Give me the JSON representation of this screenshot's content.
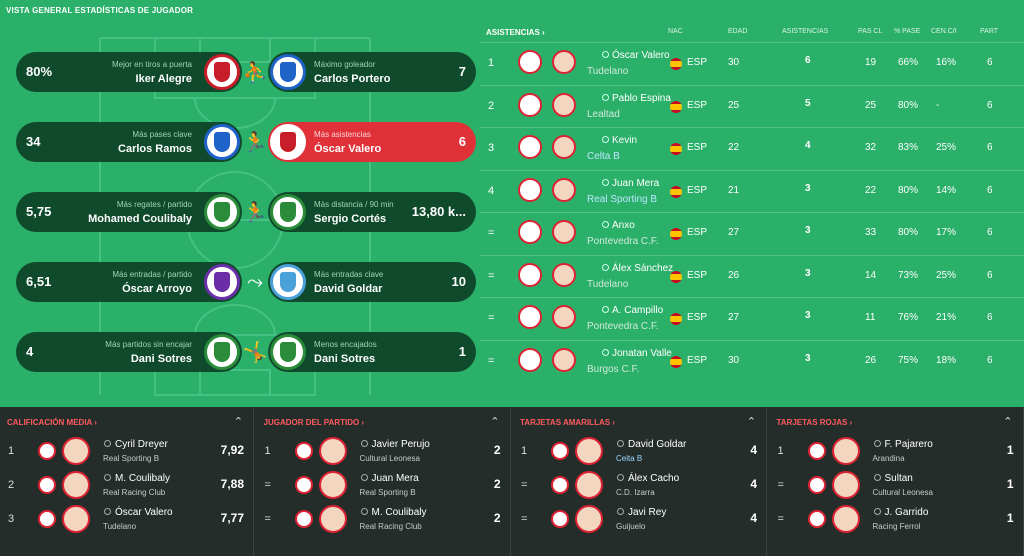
{
  "page_title": "VISTA GENERAL ESTADÍSTICAS DE JUGADOR",
  "colors": {
    "pitch": "#2bb06a",
    "pill": "#0f4a2d",
    "highlight": "#e03038",
    "panel_bg": "#252d2a",
    "accent_red": "#ff5a5f"
  },
  "highlights": [
    {
      "left": {
        "value": "80%",
        "caption": "Mejor en tiros a puerta",
        "player": "Iker Alegre"
      },
      "icon": "shooting-player-icon",
      "right": {
        "value": "7",
        "caption": "Máximo goleador",
        "player": "Carlos Portero"
      }
    },
    {
      "left": {
        "value": "34",
        "caption": "Más pases clave",
        "player": "Carlos Ramos"
      },
      "icon": "passing-player-icon",
      "right": {
        "value": "6",
        "caption": "Más asistencias",
        "player": "Óscar Valero"
      }
    },
    {
      "left": {
        "value": "5,75",
        "caption": "Más regates / partido",
        "player": "Mohamed Coulibaly"
      },
      "icon": "running-player-icon",
      "right": {
        "value": "13,80 k...",
        "caption": "Más distancia / 90 min",
        "player": "Sergio Cortés"
      }
    },
    {
      "left": {
        "value": "6,51",
        "caption": "Más entradas / partido",
        "player": "Óscar Arroyo"
      },
      "icon": "tackling-player-icon",
      "right": {
        "value": "10",
        "caption": "Más entradas clave",
        "player": "David Goldar"
      }
    },
    {
      "left": {
        "value": "4",
        "caption": "Más partidos sin encajar",
        "player": "Dani Sotres"
      },
      "icon": "diving-keeper-icon",
      "right": {
        "value": "1",
        "caption": "Menos encajados",
        "player": "Dani Sotres"
      }
    }
  ],
  "assists_table": {
    "title": "ASISTENCIAS",
    "chevron": "›",
    "headers": {
      "nat": "NAC",
      "age": "EDAD",
      "assists": "ASISTENCIAS",
      "pc": "PAS CL",
      "pass_pct": "% PASE",
      "cc": "CEN.C/I",
      "apps": "PART"
    },
    "rows": [
      {
        "rank": "1",
        "name": "Óscar Valero",
        "team": "Tudelano",
        "nat": "ESP",
        "age": "30",
        "assists": "6",
        "pc": "19",
        "pass_pct": "66%",
        "cc": "16%",
        "apps": "6"
      },
      {
        "rank": "2",
        "name": "Pablo Espina",
        "team": "Lealtad",
        "nat": "ESP",
        "age": "25",
        "assists": "5",
        "pc": "25",
        "pass_pct": "80%",
        "cc": "-",
        "apps": "6"
      },
      {
        "rank": "3",
        "name": "Kevin",
        "team": "Celta B",
        "nat": "ESP",
        "age": "22",
        "assists": "4",
        "pc": "32",
        "pass_pct": "83%",
        "cc": "25%",
        "apps": "6"
      },
      {
        "rank": "4",
        "name": "Juan Mera",
        "team": "Real Sporting B",
        "nat": "ESP",
        "age": "21",
        "assists": "3",
        "pc": "22",
        "pass_pct": "80%",
        "cc": "14%",
        "apps": "6"
      },
      {
        "rank": "=",
        "name": "Anxo",
        "team": "Pontevedra C.F.",
        "nat": "ESP",
        "age": "27",
        "assists": "3",
        "pc": "33",
        "pass_pct": "80%",
        "cc": "17%",
        "apps": "6"
      },
      {
        "rank": "=",
        "name": "Álex Sánchez",
        "team": "Tudelano",
        "nat": "ESP",
        "age": "26",
        "assists": "3",
        "pc": "14",
        "pass_pct": "73%",
        "cc": "25%",
        "apps": "6"
      },
      {
        "rank": "=",
        "name": "A. Campillo",
        "team": "Pontevedra C.F.",
        "nat": "ESP",
        "age": "27",
        "assists": "3",
        "pc": "11",
        "pass_pct": "76%",
        "cc": "21%",
        "apps": "6"
      },
      {
        "rank": "=",
        "name": "Jonatan Valle",
        "team": "Burgos C.F.",
        "nat": "ESP",
        "age": "30",
        "assists": "3",
        "pc": "26",
        "pass_pct": "75%",
        "cc": "18%",
        "apps": "6"
      }
    ]
  },
  "panels": [
    {
      "title": "CALIFICACIÓN MEDIA ›",
      "rows": [
        {
          "rank": "1",
          "name": "Cyril Dreyer",
          "team": "Real Sporting B",
          "value": "7,92"
        },
        {
          "rank": "2",
          "name": "M. Coulibaly",
          "team": "Real Racing Club",
          "value": "7,88"
        },
        {
          "rank": "3",
          "name": "Óscar Valero",
          "team": "Tudelano",
          "value": "7,77"
        }
      ]
    },
    {
      "title": "JUGADOR DEL PARTIDO ›",
      "rows": [
        {
          "rank": "1",
          "name": "Javier Perujo",
          "team": "Cultural Leonesa",
          "value": "2"
        },
        {
          "rank": "=",
          "name": "Juan Mera",
          "team": "Real Sporting B",
          "value": "2"
        },
        {
          "rank": "=",
          "name": "M. Coulibaly",
          "team": "Real Racing Club",
          "value": "2"
        }
      ]
    },
    {
      "title": "TARJETAS AMARILLAS ›",
      "rows": [
        {
          "rank": "1",
          "name": "David Goldar",
          "team": "Celta B",
          "value": "4"
        },
        {
          "rank": "=",
          "name": "Álex Cacho",
          "team": "C.D. Izarra",
          "value": "4"
        },
        {
          "rank": "=",
          "name": "Javi Rey",
          "team": "Guijuelo",
          "value": "4"
        }
      ]
    },
    {
      "title": "TARJETAS ROJAS ›",
      "rows": [
        {
          "rank": "1",
          "name": "F. Pajarero",
          "team": "Arandina",
          "value": "1"
        },
        {
          "rank": "=",
          "name": "Sultan",
          "team": "Cultural Leonesa",
          "value": "1"
        },
        {
          "rank": "=",
          "name": "J. Garrido",
          "team": "Racing Ferrol",
          "value": "1"
        }
      ]
    }
  ],
  "collapse_glyph": "⌃"
}
